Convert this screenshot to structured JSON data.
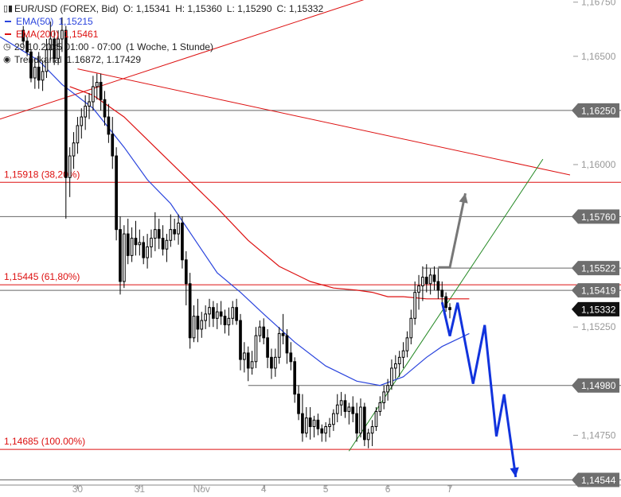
{
  "header": {
    "symbol": "EUR/USD (FOREX, Bid)",
    "open": "O: 1,15341",
    "high": "H: 1,15360",
    "low": "L: 1,15290",
    "close": "C: 1,15332",
    "ema50_label": "EMA(50)",
    "ema50_value": "1,15215",
    "ema200_label": "EMA(200)",
    "ema200_value": "1,15461",
    "date_range": "29.10.2025 01:00 - 07:00",
    "period": "(1 Woche, 1 Stunde)",
    "channel_label": "Trendkanal",
    "channel_values": "1.16872, 1.17429"
  },
  "colors": {
    "ema50": "#2a44dd",
    "ema200": "#dd1111",
    "fib": "#dd1111",
    "level": "#666666",
    "channel": "#dd1111",
    "trendline": "#228822",
    "projection_down": "#1133dd",
    "projection_up": "#777777",
    "candles": "#000000"
  },
  "chart_data": {
    "type": "candlestick",
    "symbol": "EUR/USD",
    "timeframe": "1 Stunde",
    "y_axis": {
      "range": [
        1.1452,
        1.1676
      ],
      "ticks": [
        {
          "value": 1.1675,
          "label": "1,16750"
        },
        {
          "value": 1.165,
          "label": "1,16500"
        },
        {
          "value": 1.16,
          "label": "1,16000"
        },
        {
          "value": 1.1525,
          "label": "1,15250"
        },
        {
          "value": 1.1475,
          "label": "1,14750"
        }
      ]
    },
    "x_axis": {
      "range": [
        -6,
        141
      ],
      "ticks": [
        {
          "bar": 14,
          "label": "30"
        },
        {
          "bar": 30,
          "label": "31"
        },
        {
          "bar": 46,
          "label": "Nov"
        },
        {
          "bar": 62,
          "label": "4"
        },
        {
          "bar": 78,
          "label": "5"
        },
        {
          "bar": 94,
          "label": "6"
        },
        {
          "bar": 110,
          "label": "7"
        }
      ]
    },
    "fib_levels": [
      {
        "value": 1.15918,
        "label": "1,15918 (38,20%)"
      },
      {
        "value": 1.15445,
        "label": "1,15445 (61,80%)"
      },
      {
        "value": 1.14685,
        "label": "1,14685 (100.00%)"
      }
    ],
    "price_levels": [
      {
        "value": 1.1625,
        "label": "1,16250"
      },
      {
        "value": 1.1576,
        "label": "1,15760"
      },
      {
        "value": 1.15522,
        "label": "1,15522"
      },
      {
        "value": 1.15419,
        "label": "1,15419"
      },
      {
        "value": 1.1498,
        "label": "1,14980"
      },
      {
        "value": 1.14544,
        "label": "1,14544"
      }
    ],
    "current_price": {
      "value": 1.15332,
      "label": "1,15332"
    },
    "ema50": [
      [
        -6,
        1.1659
      ],
      [
        4,
        1.1648
      ],
      [
        10,
        1.1637
      ],
      [
        18,
        1.1626
      ],
      [
        26,
        1.1608
      ],
      [
        32,
        1.1593
      ],
      [
        38,
        1.1582
      ],
      [
        44,
        1.1566
      ],
      [
        50,
        1.155
      ],
      [
        56,
        1.1541
      ],
      [
        62,
        1.1531
      ],
      [
        70,
        1.1518
      ],
      [
        78,
        1.1507
      ],
      [
        86,
        1.15
      ],
      [
        92,
        1.1498
      ],
      [
        98,
        1.1502
      ],
      [
        104,
        1.1511
      ],
      [
        108,
        1.1516
      ],
      [
        115,
        1.1522
      ]
    ],
    "ema200": [
      [
        12,
        1.1636
      ],
      [
        18,
        1.1632
      ],
      [
        26,
        1.1622
      ],
      [
        34,
        1.1608
      ],
      [
        42,
        1.1594
      ],
      [
        50,
        1.158
      ],
      [
        58,
        1.1565
      ],
      [
        66,
        1.1553
      ],
      [
        74,
        1.1546
      ],
      [
        80,
        1.1543
      ],
      [
        86,
        1.1542
      ],
      [
        90,
        1.1541
      ],
      [
        94,
        1.1539
      ],
      [
        98,
        1.1539
      ],
      [
        104,
        1.1538
      ],
      [
        108,
        1.1538
      ],
      [
        115,
        1.1538
      ]
    ],
    "trend_channel": [
      {
        "x1": -6,
        "y1": 1.1621,
        "x2": 93,
        "y2": 1.16792
      },
      {
        "x1": 14,
        "y1": 1.16442,
        "x2": 141,
        "y2": 1.15952
      }
    ],
    "trend_line": {
      "x1": 84,
      "y1": 1.14677,
      "x2": 134,
      "y2": 1.16025
    },
    "level_segments": [
      {
        "value": 1.15522,
        "x_from": 103
      },
      {
        "value": 1.1498,
        "x_from": 58
      }
    ],
    "projection_up": [
      [
        107,
        1.15525
      ],
      [
        110,
        1.15525
      ],
      [
        114,
        1.15867
      ]
    ],
    "projection_down": [
      [
        108,
        1.15364
      ],
      [
        110,
        1.15208
      ],
      [
        112,
        1.15362
      ],
      [
        116,
        1.14988
      ],
      [
        119,
        1.15259
      ],
      [
        122,
        1.14745
      ],
      [
        124,
        1.14939
      ],
      [
        127,
        1.14557
      ]
    ],
    "candles": {
      "fields": [
        "open",
        "high",
        "low",
        "close"
      ],
      "data": [
        [
          1.1662,
          1.1664,
          1.1655,
          1.1657
        ],
        [
          1.1657,
          1.1659,
          1.165,
          1.1652
        ],
        [
          1.1652,
          1.1653,
          1.1638,
          1.164
        ],
        [
          1.164,
          1.1649,
          1.1635,
          1.1645
        ],
        [
          1.1645,
          1.1652,
          1.1635,
          1.1639
        ],
        [
          1.1639,
          1.1648,
          1.1634,
          1.1643
        ],
        [
          1.1643,
          1.1658,
          1.164,
          1.1653
        ],
        [
          1.1653,
          1.1666,
          1.1648,
          1.1658
        ],
        [
          1.1658,
          1.1662,
          1.1646,
          1.1649
        ],
        [
          1.1649,
          1.1662,
          1.1646,
          1.1658
        ],
        [
          1.1658,
          1.1668,
          1.1652,
          1.1662
        ],
        [
          1.1662,
          1.1664,
          1.1575,
          1.1594
        ],
        [
          1.1594,
          1.1608,
          1.1585,
          1.1604
        ],
        [
          1.1604,
          1.1615,
          1.1598,
          1.161
        ],
        [
          1.161,
          1.1622,
          1.1605,
          1.1618
        ],
        [
          1.1618,
          1.1626,
          1.1612,
          1.1622
        ],
        [
          1.1622,
          1.1632,
          1.1616,
          1.1627
        ],
        [
          1.1627,
          1.1633,
          1.1621,
          1.1629
        ],
        [
          1.1629,
          1.1641,
          1.1625,
          1.1636
        ],
        [
          1.1636,
          1.1642,
          1.163,
          1.1638
        ],
        [
          1.1638,
          1.1642,
          1.1625,
          1.163
        ],
        [
          1.163,
          1.1634,
          1.1618,
          1.1622
        ],
        [
          1.1622,
          1.1628,
          1.161,
          1.1614
        ],
        [
          1.1614,
          1.1622,
          1.1598,
          1.1604
        ],
        [
          1.1604,
          1.1608,
          1.1565,
          1.157
        ],
        [
          1.157,
          1.1576,
          1.154,
          1.1546
        ],
        [
          1.1546,
          1.1572,
          1.1543,
          1.1568
        ],
        [
          1.1568,
          1.1575,
          1.1554,
          1.1558
        ],
        [
          1.1558,
          1.1571,
          1.1555,
          1.1566
        ],
        [
          1.1566,
          1.1574,
          1.1558,
          1.1563
        ],
        [
          1.1563,
          1.157,
          1.1558,
          1.1564
        ],
        [
          1.1564,
          1.1567,
          1.1554,
          1.1557
        ],
        [
          1.1557,
          1.1568,
          1.1552,
          1.1562
        ],
        [
          1.1562,
          1.157,
          1.1557,
          1.1566
        ],
        [
          1.1566,
          1.1578,
          1.156,
          1.157
        ],
        [
          1.157,
          1.1575,
          1.1561,
          1.1566
        ],
        [
          1.1566,
          1.1572,
          1.1558,
          1.1561
        ],
        [
          1.1561,
          1.1568,
          1.1555,
          1.1565
        ],
        [
          1.1565,
          1.1577,
          1.1562,
          1.157
        ],
        [
          1.157,
          1.1575,
          1.1565,
          1.1568
        ],
        [
          1.1568,
          1.1577,
          1.1563,
          1.1573
        ],
        [
          1.1573,
          1.1576,
          1.1552,
          1.1556
        ],
        [
          1.1556,
          1.156,
          1.1535,
          1.1545
        ],
        [
          1.1545,
          1.155,
          1.1515,
          1.152
        ],
        [
          1.152,
          1.1535,
          1.1518,
          1.153
        ],
        [
          1.153,
          1.1538,
          1.1518,
          1.1524
        ],
        [
          1.1524,
          1.1532,
          1.152,
          1.1528
        ],
        [
          1.1528,
          1.1535,
          1.1524,
          1.1531
        ],
        [
          1.1531,
          1.1538,
          1.1525,
          1.1534
        ],
        [
          1.1534,
          1.1537,
          1.1525,
          1.1529
        ],
        [
          1.1529,
          1.1536,
          1.1524,
          1.1532
        ],
        [
          1.1532,
          1.1537,
          1.1526,
          1.153
        ],
        [
          1.153,
          1.1533,
          1.1522,
          1.1526
        ],
        [
          1.1526,
          1.1534,
          1.1521,
          1.1529
        ],
        [
          1.1529,
          1.1537,
          1.1526,
          1.1534
        ],
        [
          1.1534,
          1.1538,
          1.1526,
          1.1528
        ],
        [
          1.1528,
          1.1531,
          1.1505,
          1.151
        ],
        [
          1.151,
          1.1518,
          1.1504,
          1.1513
        ],
        [
          1.1513,
          1.1516,
          1.15,
          1.1506
        ],
        [
          1.1506,
          1.1514,
          1.1503,
          1.1509
        ],
        [
          1.1509,
          1.1525,
          1.1506,
          1.1521
        ],
        [
          1.1521,
          1.1528,
          1.1518,
          1.1525
        ],
        [
          1.1525,
          1.1529,
          1.1517,
          1.152
        ],
        [
          1.152,
          1.1524,
          1.1506,
          1.1511
        ],
        [
          1.1511,
          1.1515,
          1.1501,
          1.1506
        ],
        [
          1.1506,
          1.1515,
          1.1502,
          1.1511
        ],
        [
          1.1511,
          1.1525,
          1.1508,
          1.1522
        ],
        [
          1.1522,
          1.1531,
          1.1517,
          1.1521
        ],
        [
          1.1521,
          1.1524,
          1.1508,
          1.1513
        ],
        [
          1.1513,
          1.1518,
          1.1505,
          1.1509
        ],
        [
          1.1509,
          1.1511,
          1.149,
          1.1494
        ],
        [
          1.1494,
          1.1498,
          1.1482,
          1.1485
        ],
        [
          1.1485,
          1.1494,
          1.1472,
          1.1476
        ],
        [
          1.1476,
          1.1488,
          1.1474,
          1.1483
        ],
        [
          1.1483,
          1.1488,
          1.1473,
          1.1479
        ],
        [
          1.1479,
          1.1484,
          1.1474,
          1.1482
        ],
        [
          1.1482,
          1.1485,
          1.1475,
          1.1478
        ],
        [
          1.1478,
          1.148,
          1.1472,
          1.1476
        ],
        [
          1.1476,
          1.1481,
          1.1472,
          1.1479
        ],
        [
          1.1479,
          1.1483,
          1.1474,
          1.148
        ],
        [
          1.148,
          1.1487,
          1.1477,
          1.1485
        ],
        [
          1.1485,
          1.1494,
          1.1481,
          1.1489
        ],
        [
          1.1489,
          1.1495,
          1.1484,
          1.1491
        ],
        [
          1.1491,
          1.1494,
          1.1483,
          1.1486
        ],
        [
          1.1486,
          1.149,
          1.148,
          1.1488
        ],
        [
          1.1488,
          1.1493,
          1.1481,
          1.1485
        ],
        [
          1.1485,
          1.149,
          1.1472,
          1.1476
        ],
        [
          1.1476,
          1.1492,
          1.1474,
          1.1488
        ],
        [
          1.1488,
          1.149,
          1.147,
          1.1473
        ],
        [
          1.1473,
          1.1478,
          1.1469,
          1.1476
        ],
        [
          1.1476,
          1.1482,
          1.147,
          1.1479
        ],
        [
          1.1479,
          1.1488,
          1.1477,
          1.1486
        ],
        [
          1.1486,
          1.1493,
          1.1484,
          1.149
        ],
        [
          1.149,
          1.1498,
          1.1487,
          1.1495
        ],
        [
          1.1495,
          1.1501,
          1.1491,
          1.1498
        ],
        [
          1.1498,
          1.151,
          1.1496,
          1.1506
        ],
        [
          1.1506,
          1.1512,
          1.1501,
          1.1508
        ],
        [
          1.1508,
          1.1514,
          1.1502,
          1.1511
        ],
        [
          1.1511,
          1.1518,
          1.1506,
          1.1514
        ],
        [
          1.1514,
          1.1523,
          1.1511,
          1.152
        ],
        [
          1.152,
          1.1533,
          1.1517,
          1.1529
        ],
        [
          1.1529,
          1.1546,
          1.1526,
          1.1541
        ],
        [
          1.1541,
          1.1549,
          1.1533,
          1.1544
        ],
        [
          1.1544,
          1.1553,
          1.1537,
          1.1548
        ],
        [
          1.1548,
          1.1554,
          1.1541,
          1.1545
        ],
        [
          1.1545,
          1.1552,
          1.154,
          1.1549
        ],
        [
          1.1549,
          1.1553,
          1.1542,
          1.1546
        ],
        [
          1.1546,
          1.1552,
          1.1538,
          1.1542
        ],
        [
          1.1542,
          1.1546,
          1.1535,
          1.1539
        ],
        [
          1.1539,
          1.1541,
          1.1532,
          1.1534
        ],
        [
          1.1534,
          1.1536,
          1.1529,
          1.1533
        ]
      ]
    }
  }
}
